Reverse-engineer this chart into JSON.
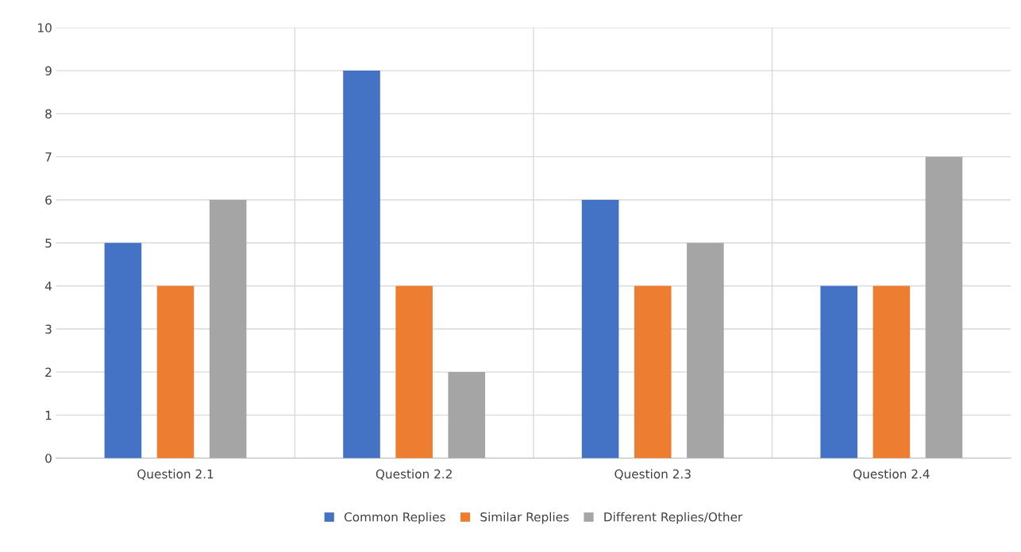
{
  "chart_data": {
    "type": "bar",
    "categories": [
      "Question 2.1",
      "Question 2.2",
      "Question 2.3",
      "Question 2.4"
    ],
    "series": [
      {
        "name": "Common Replies",
        "color": "#4472c4",
        "values": [
          5,
          9,
          6,
          4
        ]
      },
      {
        "name": "Similar Replies",
        "color": "#ed7d31",
        "values": [
          4,
          4,
          4,
          4
        ]
      },
      {
        "name": "Different Replies/Other",
        "color": "#a5a5a5",
        "values": [
          6,
          2,
          5,
          7
        ]
      }
    ],
    "ylim": [
      0,
      10
    ],
    "yticks": [
      0,
      1,
      2,
      3,
      4,
      5,
      6,
      7,
      8,
      9,
      10
    ],
    "grid": true,
    "legend": "bottom"
  }
}
